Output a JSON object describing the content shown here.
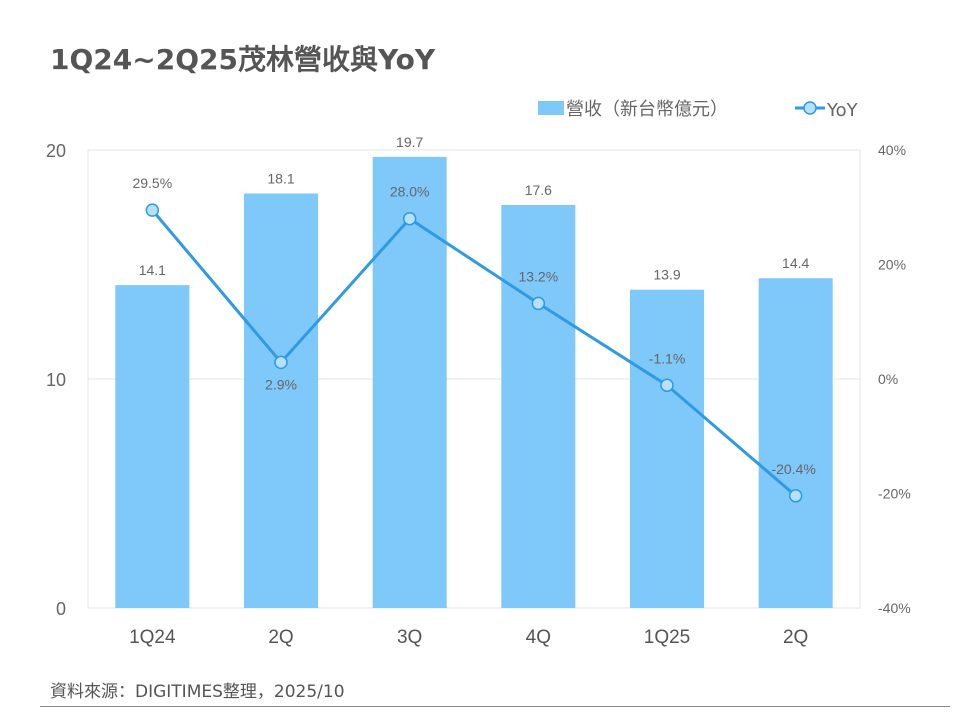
{
  "title": "1Q24~2Q25茂林營收與YoY",
  "source": "資料來源：DIGITIMES整理，2025/10",
  "chart_data": {
    "type": "bar+line",
    "title": "1Q24~2Q25茂林營收與YoY",
    "categories": [
      "1Q24",
      "2Q",
      "3Q",
      "4Q",
      "1Q25",
      "2Q"
    ],
    "series": [
      {
        "name": "營收（新台幣億元）",
        "type": "bar",
        "axis": "left",
        "color": "#7ec8fa",
        "values": [
          14.1,
          18.1,
          19.7,
          17.6,
          13.9,
          14.4
        ],
        "labels": [
          "14.1",
          "18.1",
          "19.7",
          "17.6",
          "13.9",
          "14.4"
        ]
      },
      {
        "name": "YoY",
        "type": "line",
        "axis": "right",
        "color": "#2f9ae6",
        "values": [
          29.5,
          2.9,
          28.0,
          13.2,
          -1.1,
          -20.4
        ],
        "labels": [
          "29.5%",
          "2.9%",
          "28.0%",
          "13.2%",
          "-1.1%",
          "-20.4%"
        ]
      }
    ],
    "y_left": {
      "range": [
        0,
        20
      ],
      "ticks": [
        "0",
        "10",
        "20"
      ]
    },
    "y_right": {
      "range": [
        -40,
        40
      ],
      "ticks": [
        "-40%",
        "-20%",
        "0%",
        "20%",
        "40%"
      ]
    },
    "grid": true,
    "legend": "top-right"
  }
}
